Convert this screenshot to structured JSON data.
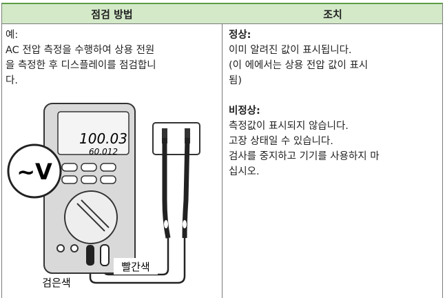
{
  "table": {
    "headers": [
      "점검 방법",
      "조치"
    ],
    "left": {
      "label": "예:",
      "lines": [
        "AC 전압 측정을 수행하여 상용 전원",
        "을 측정한 후 디스플레이를 점검합니",
        "다."
      ]
    },
    "right": {
      "normal_title": "정상:",
      "normal_lines": [
        "이미 알려진 값이 표시됩니다.",
        "(이 에에서는 상용 전압 값이 표시",
        "됨)"
      ],
      "abnormal_title": "비정상:",
      "abnormal_lines": [
        "측정값이 표시되지 않습니다.",
        "고장 상태일 수 있습니다.",
        "검사를 중지하고 기기를 사용하지 마",
        "십시오."
      ]
    }
  },
  "illustration": {
    "function_label": "~V",
    "display_main": "100.03",
    "display_sub": "60.012",
    "red_label": "빨간색",
    "black_label": "검은색"
  }
}
